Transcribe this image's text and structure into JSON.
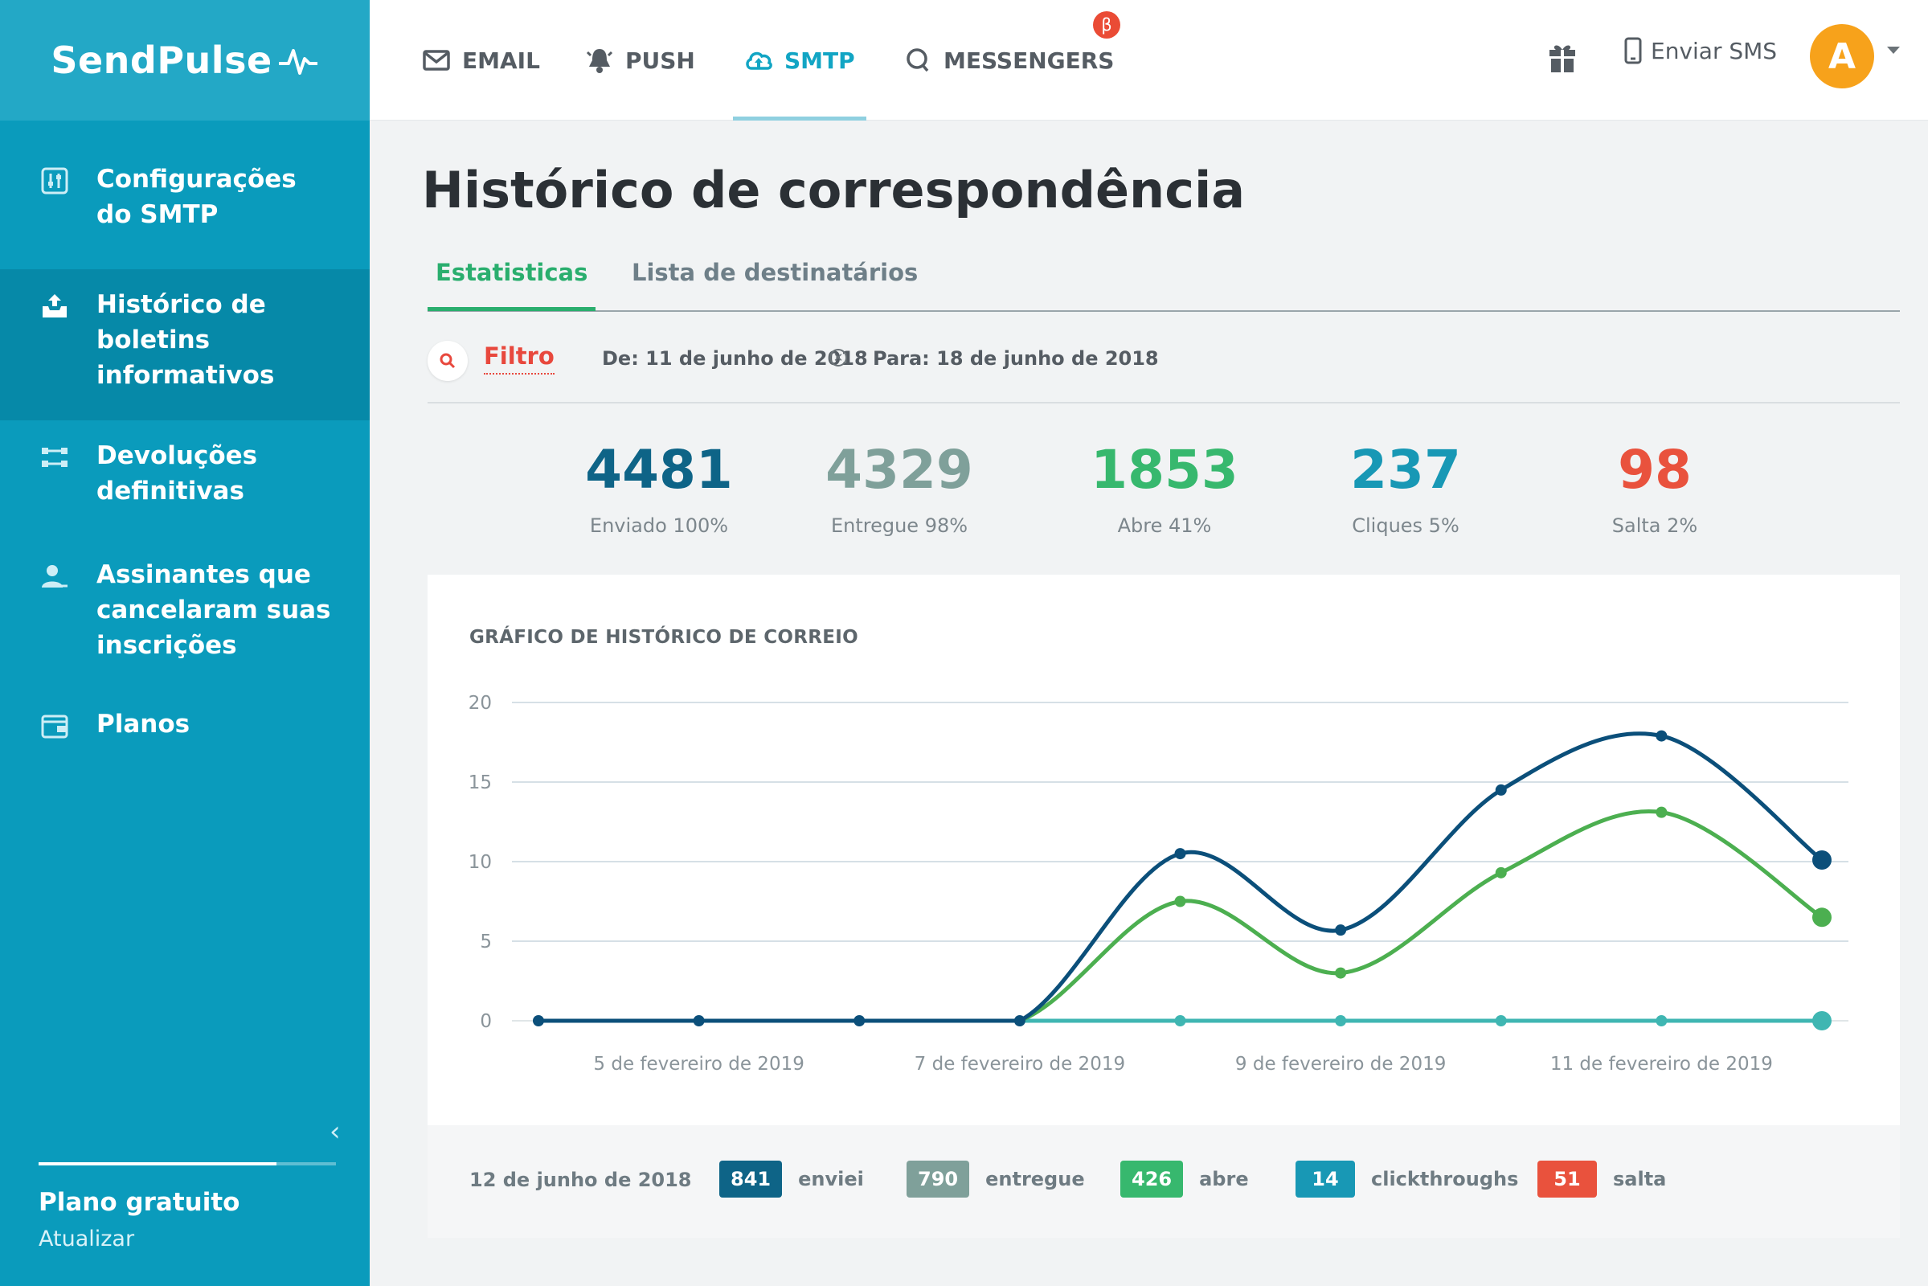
{
  "app": {
    "logo": "SendPulse"
  },
  "topnav": {
    "tabs": [
      {
        "label": "EMAIL",
        "icon": "envelope-icon"
      },
      {
        "label": "PUSH",
        "icon": "bell-icon"
      },
      {
        "label": "SMTP",
        "icon": "cloud-upload-icon",
        "active": true
      },
      {
        "label": "MESSENGERS",
        "icon": "chat-bubble-icon",
        "badge": "β"
      }
    ],
    "sms_label": "Enviar SMS",
    "avatar_letter": "A"
  },
  "sidebar": {
    "items": [
      {
        "label": "Configurações do SMTP",
        "icon": "sliders-icon"
      },
      {
        "label": "Histórico de boletins informativos",
        "icon": "upload-box-icon",
        "active": true
      },
      {
        "label": "Devoluções definitivas",
        "icon": "arrows-swap-icon"
      },
      {
        "label": "Assinantes que cancelaram suas inscrições",
        "icon": "user-remove-icon"
      },
      {
        "label": "Planos",
        "icon": "wallet-icon"
      }
    ],
    "plan_name": "Plano gratuito",
    "plan_link": "Atualizar",
    "plan_progress": 0.8
  },
  "main": {
    "title": "Histórico de correspondência",
    "subtabs": [
      "Estatisticas",
      "Lista de destinatários"
    ],
    "filter": {
      "label": "Filtro",
      "from": "De: 11 de junho de 2018",
      "to": "Para: 18 de junho de 2018"
    },
    "stats": [
      {
        "value": "4481",
        "label": "Enviado 100%",
        "color": "#0e6487"
      },
      {
        "value": "4329",
        "label": "Entregue 98%",
        "color": "#7fa09a"
      },
      {
        "value": "1853",
        "label": "Abre 41%",
        "color": "#37b86e"
      },
      {
        "value": "237",
        "label": "Cliques 5%",
        "color": "#1898b5"
      },
      {
        "value": "98",
        "label": "Salta 2%",
        "color": "#e9523d"
      }
    ]
  },
  "chart_data": {
    "type": "line",
    "title": "GRÁFICO DE HISTÓRICO DE CORREIO",
    "ylim": [
      0,
      20
    ],
    "yticks": [
      0,
      5,
      10,
      15,
      20
    ],
    "x": [
      0,
      1,
      2,
      3,
      4,
      5,
      6,
      7,
      8
    ],
    "xtick_labels": [
      {
        "at": 1,
        "label": "5 de fevereiro de 2019"
      },
      {
        "at": 3,
        "label": "7 de fevereiro de 2019"
      },
      {
        "at": 5,
        "label": "9 de fevereiro de 2019"
      },
      {
        "at": 7,
        "label": "11 de fevereiro de 2019"
      }
    ],
    "grid": true,
    "series": [
      {
        "color": "#0b4f7a",
        "values": [
          0,
          0,
          0,
          0,
          10.5,
          5.7,
          14.5,
          17.9,
          10.1
        ]
      },
      {
        "color": "#4caf50",
        "values": [
          0,
          0,
          0,
          0,
          7.5,
          3,
          9.3,
          13.1,
          6.5
        ]
      },
      {
        "color": "#3fb6b2",
        "values": [
          0,
          0,
          0,
          0,
          0,
          0,
          0,
          0,
          0
        ]
      }
    ]
  },
  "legend": {
    "date": "12 de junho de 2018",
    "items": [
      {
        "value": "841",
        "label": "enviei",
        "color": "#0e6487"
      },
      {
        "value": "790",
        "label": "entregue",
        "color": "#7fa09a"
      },
      {
        "value": "426",
        "label": "abre",
        "color": "#37b86e"
      },
      {
        "value": "14",
        "label": "clickthroughs",
        "color": "#1898b5"
      },
      {
        "value": "51",
        "label": "salta",
        "color": "#e9523d"
      }
    ]
  }
}
